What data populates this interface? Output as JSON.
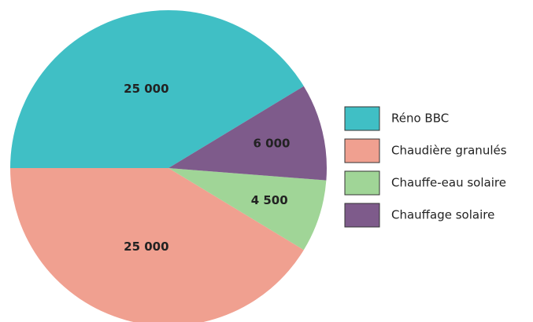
{
  "chart_data": {
    "type": "pie",
    "categories": [
      "Réno BBC",
      "Chaudière granulés",
      "Chauffe-eau solaire",
      "Chauffage solaire"
    ],
    "values": [
      25000,
      25000,
      4500,
      6000
    ],
    "value_labels": [
      "25 000",
      "25 000",
      "4 500",
      "6 000"
    ],
    "colors": [
      "#40bfc5",
      "#f0a090",
      "#a0d597",
      "#7e5b8b"
    ],
    "legend": "right"
  }
}
